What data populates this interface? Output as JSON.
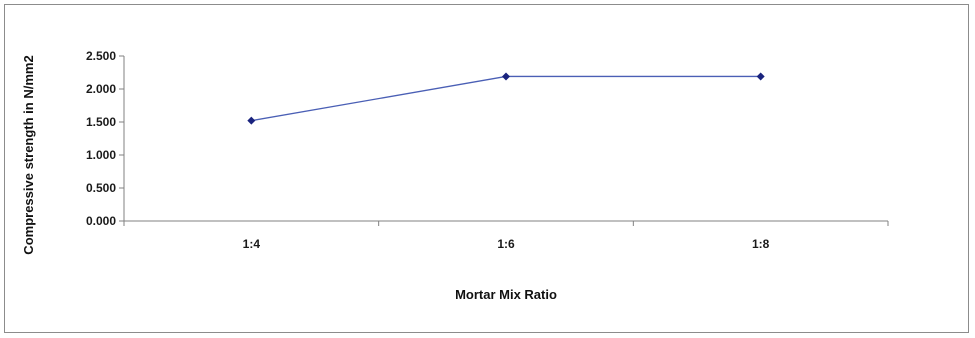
{
  "chart_data": {
    "type": "line",
    "categories": [
      "1:4",
      "1:6",
      "1:8"
    ],
    "series": [
      {
        "values": [
          1.52,
          2.19,
          2.19
        ]
      }
    ],
    "title": "",
    "xlabel": "Mortar Mix Ratio",
    "ylabel": "Compressive strength in N/mm2",
    "ylim": [
      0,
      2.5
    ],
    "yticks": [
      "0.000",
      "0.500",
      "1.000",
      "1.500",
      "2.000",
      "2.500"
    ],
    "grid": false,
    "legend": "none",
    "line_color": "#4a5fb5",
    "marker_color": "#1a237e"
  }
}
